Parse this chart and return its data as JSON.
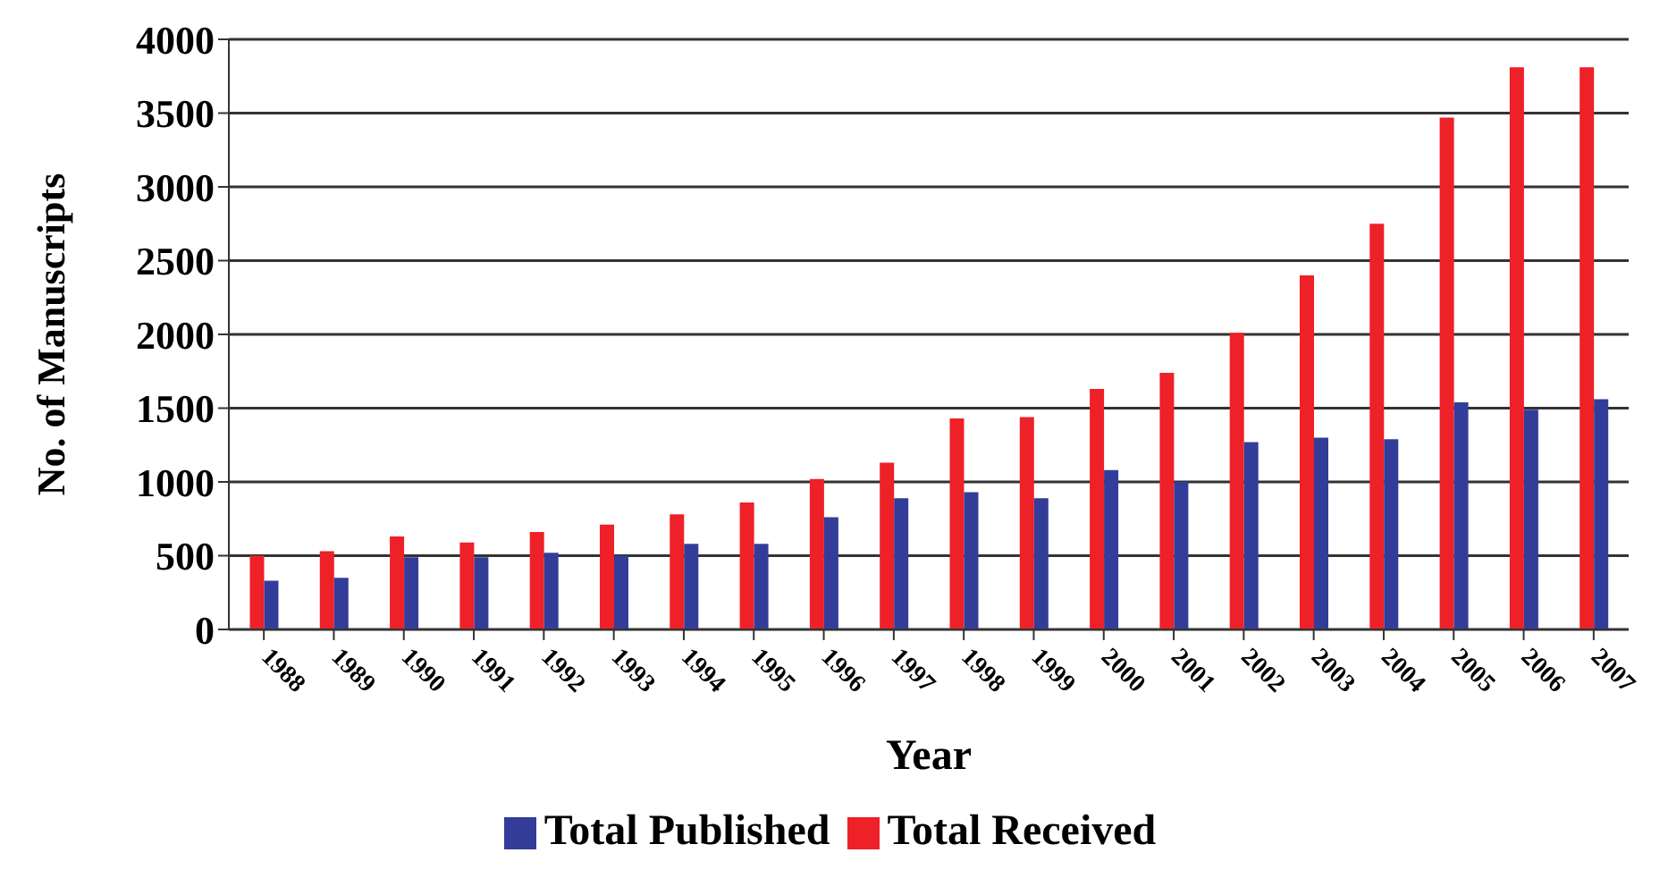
{
  "chart_data": {
    "type": "bar",
    "xlabel": "Year",
    "ylabel": "No. of Manuscripts",
    "categories": [
      "1988",
      "1989",
      "1990",
      "1991",
      "1992",
      "1993",
      "1994",
      "1995",
      "1996",
      "1997",
      "1998",
      "1999",
      "2000",
      "2001",
      "2002",
      "2003",
      "2004",
      "2005",
      "2006",
      "2007"
    ],
    "series": [
      {
        "name": "Total Received",
        "color": "#ee2028",
        "values": [
          500,
          530,
          630,
          590,
          660,
          710,
          780,
          860,
          1020,
          1130,
          1430,
          1440,
          1630,
          1740,
          2010,
          2400,
          2750,
          3470,
          3810,
          3810
        ]
      },
      {
        "name": "Total Published",
        "color": "#333d99",
        "values": [
          330,
          350,
          490,
          490,
          520,
          500,
          580,
          580,
          760,
          890,
          930,
          890,
          1080,
          1000,
          1270,
          1300,
          1290,
          1540,
          1490,
          1560
        ]
      }
    ],
    "ylim": [
      0,
      4000
    ],
    "yticks": [
      0,
      500,
      1000,
      1500,
      2000,
      2500,
      3000,
      3500,
      4000
    ],
    "grid": "y",
    "legend": "bottom"
  }
}
